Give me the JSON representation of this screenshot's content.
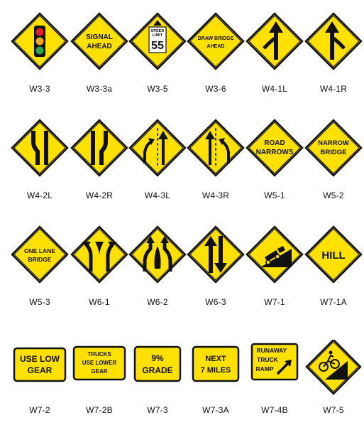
{
  "signs": {
    "w3_3": {
      "code": "W3-3"
    },
    "w3_3a": {
      "code": "W3-3a",
      "lines": [
        "SIGNAL",
        "AHEAD"
      ]
    },
    "w3_5": {
      "code": "W3-5",
      "lines": [
        "SPEED",
        "LIMIT"
      ],
      "speed": "55"
    },
    "w3_6": {
      "code": "W3-6",
      "lines": [
        "DRAW BRIDGE",
        "AHEAD"
      ]
    },
    "w4_1l": {
      "code": "W4-1L"
    },
    "w4_1r": {
      "code": "W4-1R"
    },
    "w4_2l": {
      "code": "W4-2L"
    },
    "w4_2r": {
      "code": "W4-2R"
    },
    "w4_3l": {
      "code": "W4-3L"
    },
    "w4_3r": {
      "code": "W4-3R"
    },
    "w5_1": {
      "code": "W5-1",
      "lines": [
        "ROAD",
        "NARROWS"
      ]
    },
    "w5_2": {
      "code": "W5-2",
      "lines": [
        "NARROW",
        "BRIDGE"
      ]
    },
    "w5_3": {
      "code": "W5-3",
      "lines": [
        "ONE LANE",
        "BRIDGE"
      ]
    },
    "w6_1": {
      "code": "W6-1"
    },
    "w6_2": {
      "code": "W6-2"
    },
    "w6_3": {
      "code": "W6-3"
    },
    "w7_1": {
      "code": "W7-1"
    },
    "w7_1a": {
      "code": "W7-1A",
      "lines": [
        "HILL"
      ]
    },
    "w7_2": {
      "code": "W7-2",
      "lines": [
        "USE LOW",
        "GEAR"
      ]
    },
    "w7_2b": {
      "code": "W7-2B",
      "lines": [
        "TRUCKS",
        "USE LOWER",
        "GEAR"
      ]
    },
    "w7_3": {
      "code": "W7-3",
      "lines": [
        "9%",
        "GRADE"
      ]
    },
    "w7_3a": {
      "code": "W7-3A",
      "lines": [
        "NEXT",
        "7 MILES"
      ]
    },
    "w7_4b": {
      "code": "W7-4B",
      "lines": [
        "RUNAWAY",
        "TRUCK",
        "RAMP"
      ]
    },
    "w7_5": {
      "code": "W7-5"
    }
  },
  "colors": {
    "sign_yellow": "#FFE100",
    "legend_black": "#111111",
    "signal_red": "#E0202A",
    "signal_amber": "#F5A623",
    "signal_green": "#2FA84F"
  }
}
